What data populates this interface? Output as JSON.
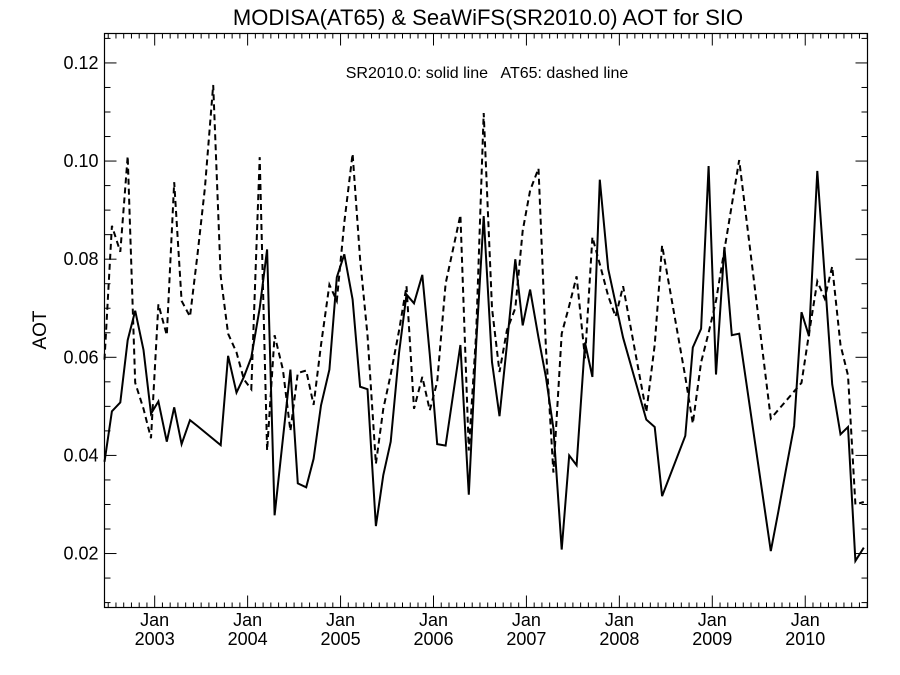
{
  "chart_data": {
    "type": "line",
    "title": "MODISA(AT65) & SeaWiFS(SR2010.0)  AOT for SIO",
    "annotation": "SR2010.0: solid line   AT65: dashed line",
    "xlabel": "",
    "ylabel": "AOT",
    "xlim": [
      2002.46,
      2010.67
    ],
    "ylim": [
      0.009,
      0.126
    ],
    "y_ticks": [
      0.02,
      0.04,
      0.06,
      0.08,
      0.1,
      0.12
    ],
    "y_tick_labels": [
      "0.02",
      "0.04",
      "0.06",
      "0.08",
      "0.10",
      "0.12"
    ],
    "x_ticks": [
      2003.0,
      2004.0,
      2005.0,
      2006.0,
      2007.0,
      2008.0,
      2009.0,
      2010.0
    ],
    "x_tick_month_label": "Jan",
    "x_tick_year_labels": [
      "2003",
      "2004",
      "2005",
      "2006",
      "2007",
      "2008",
      "2009",
      "2010"
    ],
    "grid": false,
    "series": [
      {
        "name": "SR2010.0",
        "line_style": "solid",
        "color": "#000000",
        "x": [
          2002.46,
          2002.54,
          2002.63,
          2002.71,
          2002.79,
          2002.88,
          2002.96,
          2003.04,
          2003.13,
          2003.21,
          2003.29,
          2003.38,
          2003.46,
          2003.71,
          2003.79,
          2003.88,
          2003.96,
          2004.04,
          2004.13,
          2004.21,
          2004.29,
          2004.46,
          2004.54,
          2004.63,
          2004.71,
          2004.79,
          2004.88,
          2004.96,
          2005.04,
          2005.13,
          2005.21,
          2005.29,
          2005.38,
          2005.46,
          2005.54,
          2005.63,
          2005.71,
          2005.79,
          2005.88,
          2005.96,
          2006.04,
          2006.13,
          2006.29,
          2006.38,
          2006.46,
          2006.54,
          2006.63,
          2006.71,
          2006.79,
          2006.88,
          2006.96,
          2007.04,
          2007.13,
          2007.21,
          2007.29,
          2007.38,
          2007.46,
          2007.54,
          2007.63,
          2007.71,
          2007.79,
          2007.88,
          2007.96,
          2008.04,
          2008.29,
          2008.38,
          2008.46,
          2008.71,
          2008.79,
          2008.88,
          2008.96,
          2009.04,
          2009.13,
          2009.21,
          2009.29,
          2009.63,
          2009.71,
          2009.79,
          2009.88,
          2009.96,
          2010.04,
          2010.13,
          2010.21,
          2010.29,
          2010.38,
          2010.46,
          2010.54,
          2010.63
        ],
        "y": [
          0.0387,
          0.049,
          0.0508,
          0.0635,
          0.0695,
          0.0615,
          0.0485,
          0.051,
          0.0428,
          0.0498,
          0.0423,
          0.0472,
          0.046,
          0.0421,
          0.0603,
          0.0528,
          0.056,
          0.06,
          0.07,
          0.082,
          0.0278,
          0.0575,
          0.0343,
          0.0335,
          0.0393,
          0.0502,
          0.0575,
          0.0763,
          0.081,
          0.0718,
          0.054,
          0.0535,
          0.0256,
          0.036,
          0.0428,
          0.061,
          0.0728,
          0.071,
          0.0768,
          0.0605,
          0.0423,
          0.042,
          0.0625,
          0.032,
          0.0628,
          0.0888,
          0.059,
          0.048,
          0.0625,
          0.08,
          0.0665,
          0.0738,
          0.064,
          0.056,
          0.0455,
          0.0208,
          0.04,
          0.038,
          0.063,
          0.056,
          0.0962,
          0.078,
          0.071,
          0.064,
          0.0473,
          0.0458,
          0.0317,
          0.044,
          0.062,
          0.0658,
          0.099,
          0.0565,
          0.0825,
          0.0645,
          0.0648,
          0.0205,
          0.0285,
          0.0368,
          0.046,
          0.0692,
          0.0643,
          0.098,
          0.0765,
          0.0545,
          0.0443,
          0.0458,
          0.0185,
          0.0212
        ]
      },
      {
        "name": "AT65",
        "line_style": "dashed",
        "color": "#000000",
        "x": [
          2002.46,
          2002.54,
          2002.63,
          2002.71,
          2002.79,
          2002.88,
          2002.96,
          2003.04,
          2003.13,
          2003.21,
          2003.29,
          2003.38,
          2003.46,
          2003.54,
          2003.63,
          2003.71,
          2003.79,
          2003.88,
          2003.96,
          2004.04,
          2004.13,
          2004.21,
          2004.29,
          2004.38,
          2004.46,
          2004.54,
          2004.63,
          2004.71,
          2004.79,
          2004.88,
          2004.96,
          2005.04,
          2005.13,
          2005.21,
          2005.29,
          2005.38,
          2005.46,
          2005.54,
          2005.63,
          2005.71,
          2005.79,
          2005.88,
          2005.96,
          2006.04,
          2006.13,
          2006.29,
          2006.38,
          2006.46,
          2006.54,
          2006.63,
          2006.71,
          2006.79,
          2006.88,
          2006.96,
          2007.04,
          2007.13,
          2007.21,
          2007.29,
          2007.38,
          2007.46,
          2007.54,
          2007.63,
          2007.71,
          2007.79,
          2007.88,
          2007.96,
          2008.04,
          2008.29,
          2008.38,
          2008.46,
          2008.71,
          2008.79,
          2008.88,
          2008.96,
          2009.04,
          2009.29,
          2009.63,
          2009.96,
          2010.04,
          2010.13,
          2010.21,
          2010.29,
          2010.38,
          2010.46,
          2010.54,
          2010.63
        ],
        "y": [
          0.0595,
          0.0868,
          0.0815,
          0.101,
          0.0548,
          0.0495,
          0.0435,
          0.0708,
          0.0645,
          0.0957,
          0.0715,
          0.0683,
          0.0808,
          0.0945,
          0.1155,
          0.0765,
          0.0648,
          0.061,
          0.0555,
          0.0535,
          0.1008,
          0.041,
          0.0645,
          0.0575,
          0.045,
          0.0568,
          0.0573,
          0.0503,
          0.0625,
          0.0748,
          0.0715,
          0.0875,
          0.1015,
          0.08,
          0.0645,
          0.0383,
          0.0495,
          0.0565,
          0.0655,
          0.0745,
          0.0495,
          0.056,
          0.0492,
          0.055,
          0.075,
          0.089,
          0.041,
          0.065,
          0.1098,
          0.07,
          0.057,
          0.0655,
          0.07,
          0.0858,
          0.094,
          0.0985,
          0.062,
          0.0365,
          0.0648,
          0.0705,
          0.0765,
          0.0598,
          0.0845,
          0.079,
          0.0725,
          0.0683,
          0.0745,
          0.0488,
          0.0625,
          0.0828,
          0.056,
          0.0465,
          0.059,
          0.065,
          0.0715,
          0.1002,
          0.0475,
          0.0548,
          0.0648,
          0.0755,
          0.072,
          0.0785,
          0.0625,
          0.0563,
          0.03,
          0.0305
        ]
      }
    ]
  }
}
